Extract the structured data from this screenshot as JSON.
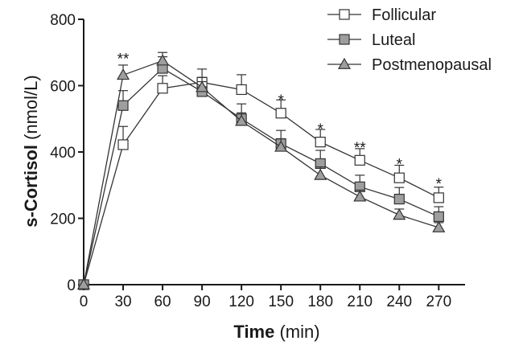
{
  "chart_data": {
    "type": "line",
    "title": "",
    "x": [
      0,
      30,
      60,
      90,
      120,
      150,
      180,
      210,
      240,
      270
    ],
    "xlim": [
      0,
      290
    ],
    "ylim": [
      0,
      800
    ],
    "xticks": [
      0,
      30,
      60,
      90,
      120,
      150,
      180,
      210,
      240,
      270
    ],
    "yticks": [
      0,
      200,
      400,
      600,
      800
    ],
    "xlabel_bold": "Time",
    "xlabel_unit": " (min)",
    "ylabel_bold": "s-Cortisol",
    "ylabel_unit": " (nmol/L)",
    "grid": false,
    "legend_position": "top-right",
    "series": [
      {
        "name": "Follicular",
        "marker": "square-open",
        "color": "#ffffff",
        "values": [
          0,
          422,
          592,
          610,
          588,
          517,
          430,
          375,
          322,
          262
        ],
        "errors": [
          0,
          55,
          38,
          40,
          45,
          40,
          38,
          35,
          38,
          32
        ]
      },
      {
        "name": "Luteal",
        "marker": "square-filled",
        "color": "#9e9e9e",
        "values": [
          0,
          540,
          652,
          582,
          500,
          425,
          365,
          295,
          258,
          205
        ],
        "errors": [
          0,
          45,
          35,
          30,
          45,
          40,
          40,
          35,
          35,
          30
        ]
      },
      {
        "name": "Postmenopausal",
        "marker": "triangle-filled",
        "color": "#9e9e9e",
        "values": [
          0,
          632,
          675,
          595,
          493,
          415,
          330,
          265,
          210,
          172
        ],
        "errors": [
          0,
          30,
          25,
          30,
          25,
          25,
          25,
          20,
          18,
          15
        ]
      }
    ],
    "annotations": [
      {
        "x": 30,
        "text": "**",
        "y": 680
      },
      {
        "x": 150,
        "text": "*",
        "y": 555
      },
      {
        "x": 180,
        "text": "*",
        "y": 468
      },
      {
        "x": 210,
        "text": "**",
        "y": 412
      },
      {
        "x": 240,
        "text": "*",
        "y": 362
      },
      {
        "x": 270,
        "text": "*",
        "y": 303
      }
    ]
  }
}
